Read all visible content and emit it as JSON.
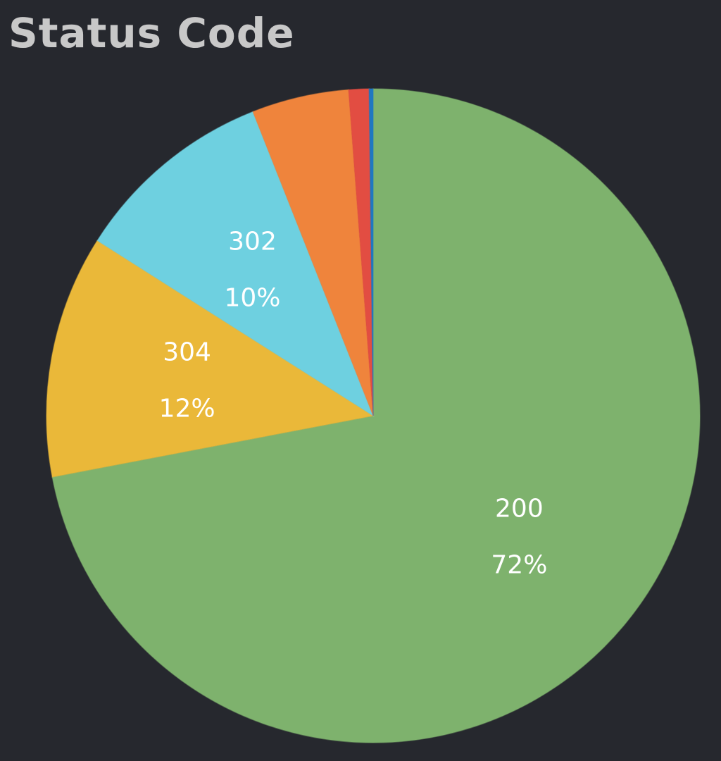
{
  "panel": {
    "title": "Status Code"
  },
  "chart_data": {
    "type": "pie",
    "title": "Status Code",
    "start_angle_deg": 0,
    "direction": "clockwise",
    "slices": [
      {
        "label": "200",
        "value": 72,
        "percent_label": "72%",
        "color": "#7eb26d",
        "show_label": true
      },
      {
        "label": "304",
        "value": 12,
        "percent_label": "12%",
        "color": "#eab839",
        "show_label": true
      },
      {
        "label": "302",
        "value": 10,
        "percent_label": "10%",
        "color": "#6ed0e0",
        "show_label": true
      },
      {
        "label": "",
        "value": 4.8,
        "percent_label": "",
        "color": "#ef843c",
        "show_label": false
      },
      {
        "label": "",
        "value": 1.0,
        "percent_label": "",
        "color": "#e24d42",
        "show_label": false
      },
      {
        "label": "",
        "value": 0.2,
        "percent_label": "",
        "color": "#1f78c1",
        "show_label": false
      }
    ]
  }
}
